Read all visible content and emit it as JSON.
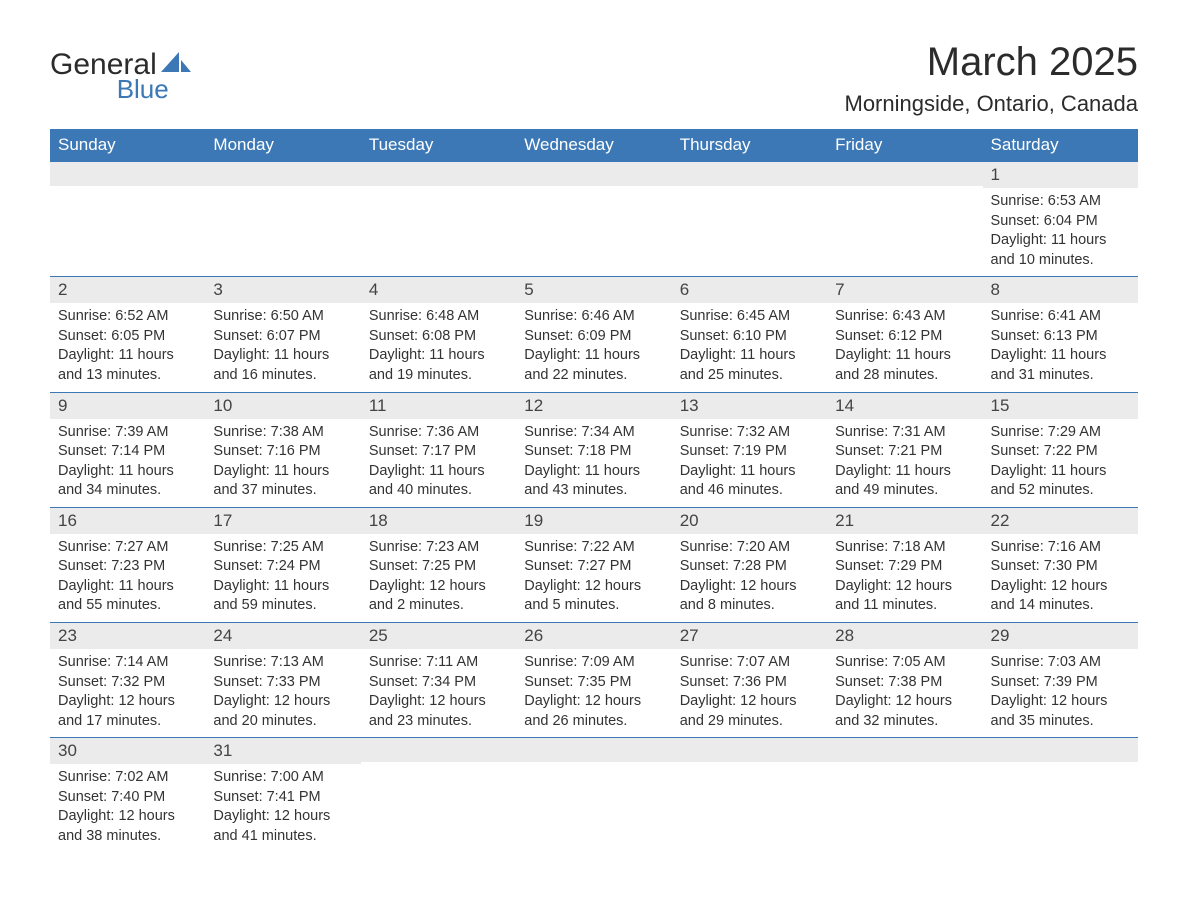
{
  "colors": {
    "header_bg": "#3b78b5",
    "header_text": "#ffffff",
    "daynum_bg": "#ebebeb",
    "row_border": "#3b78b5",
    "text": "#333333",
    "logo_blue": "#3b78b5",
    "logo_dark": "#2b2b2b",
    "page_bg": "#ffffff"
  },
  "typography": {
    "title_fontsize_pt": 30,
    "location_fontsize_pt": 16,
    "weekday_fontsize_pt": 13,
    "daynum_fontsize_pt": 13,
    "body_fontsize_pt": 11,
    "font_family": "Arial"
  },
  "logo": {
    "top_text": "General",
    "bottom_text": "Blue"
  },
  "title": {
    "month": "March 2025",
    "location": "Morningside, Ontario, Canada"
  },
  "weekdays": [
    "Sunday",
    "Monday",
    "Tuesday",
    "Wednesday",
    "Thursday",
    "Friday",
    "Saturday"
  ],
  "layout": {
    "columns": 7,
    "rows": 6,
    "first_day_weekday_index": 6
  },
  "weeks": [
    [
      null,
      null,
      null,
      null,
      null,
      null,
      {
        "n": "1",
        "sunrise": "Sunrise: 6:53 AM",
        "sunset": "Sunset: 6:04 PM",
        "daylight1": "Daylight: 11 hours",
        "daylight2": "and 10 minutes."
      }
    ],
    [
      {
        "n": "2",
        "sunrise": "Sunrise: 6:52 AM",
        "sunset": "Sunset: 6:05 PM",
        "daylight1": "Daylight: 11 hours",
        "daylight2": "and 13 minutes."
      },
      {
        "n": "3",
        "sunrise": "Sunrise: 6:50 AM",
        "sunset": "Sunset: 6:07 PM",
        "daylight1": "Daylight: 11 hours",
        "daylight2": "and 16 minutes."
      },
      {
        "n": "4",
        "sunrise": "Sunrise: 6:48 AM",
        "sunset": "Sunset: 6:08 PM",
        "daylight1": "Daylight: 11 hours",
        "daylight2": "and 19 minutes."
      },
      {
        "n": "5",
        "sunrise": "Sunrise: 6:46 AM",
        "sunset": "Sunset: 6:09 PM",
        "daylight1": "Daylight: 11 hours",
        "daylight2": "and 22 minutes."
      },
      {
        "n": "6",
        "sunrise": "Sunrise: 6:45 AM",
        "sunset": "Sunset: 6:10 PM",
        "daylight1": "Daylight: 11 hours",
        "daylight2": "and 25 minutes."
      },
      {
        "n": "7",
        "sunrise": "Sunrise: 6:43 AM",
        "sunset": "Sunset: 6:12 PM",
        "daylight1": "Daylight: 11 hours",
        "daylight2": "and 28 minutes."
      },
      {
        "n": "8",
        "sunrise": "Sunrise: 6:41 AM",
        "sunset": "Sunset: 6:13 PM",
        "daylight1": "Daylight: 11 hours",
        "daylight2": "and 31 minutes."
      }
    ],
    [
      {
        "n": "9",
        "sunrise": "Sunrise: 7:39 AM",
        "sunset": "Sunset: 7:14 PM",
        "daylight1": "Daylight: 11 hours",
        "daylight2": "and 34 minutes."
      },
      {
        "n": "10",
        "sunrise": "Sunrise: 7:38 AM",
        "sunset": "Sunset: 7:16 PM",
        "daylight1": "Daylight: 11 hours",
        "daylight2": "and 37 minutes."
      },
      {
        "n": "11",
        "sunrise": "Sunrise: 7:36 AM",
        "sunset": "Sunset: 7:17 PM",
        "daylight1": "Daylight: 11 hours",
        "daylight2": "and 40 minutes."
      },
      {
        "n": "12",
        "sunrise": "Sunrise: 7:34 AM",
        "sunset": "Sunset: 7:18 PM",
        "daylight1": "Daylight: 11 hours",
        "daylight2": "and 43 minutes."
      },
      {
        "n": "13",
        "sunrise": "Sunrise: 7:32 AM",
        "sunset": "Sunset: 7:19 PM",
        "daylight1": "Daylight: 11 hours",
        "daylight2": "and 46 minutes."
      },
      {
        "n": "14",
        "sunrise": "Sunrise: 7:31 AM",
        "sunset": "Sunset: 7:21 PM",
        "daylight1": "Daylight: 11 hours",
        "daylight2": "and 49 minutes."
      },
      {
        "n": "15",
        "sunrise": "Sunrise: 7:29 AM",
        "sunset": "Sunset: 7:22 PM",
        "daylight1": "Daylight: 11 hours",
        "daylight2": "and 52 minutes."
      }
    ],
    [
      {
        "n": "16",
        "sunrise": "Sunrise: 7:27 AM",
        "sunset": "Sunset: 7:23 PM",
        "daylight1": "Daylight: 11 hours",
        "daylight2": "and 55 minutes."
      },
      {
        "n": "17",
        "sunrise": "Sunrise: 7:25 AM",
        "sunset": "Sunset: 7:24 PM",
        "daylight1": "Daylight: 11 hours",
        "daylight2": "and 59 minutes."
      },
      {
        "n": "18",
        "sunrise": "Sunrise: 7:23 AM",
        "sunset": "Sunset: 7:25 PM",
        "daylight1": "Daylight: 12 hours",
        "daylight2": "and 2 minutes."
      },
      {
        "n": "19",
        "sunrise": "Sunrise: 7:22 AM",
        "sunset": "Sunset: 7:27 PM",
        "daylight1": "Daylight: 12 hours",
        "daylight2": "and 5 minutes."
      },
      {
        "n": "20",
        "sunrise": "Sunrise: 7:20 AM",
        "sunset": "Sunset: 7:28 PM",
        "daylight1": "Daylight: 12 hours",
        "daylight2": "and 8 minutes."
      },
      {
        "n": "21",
        "sunrise": "Sunrise: 7:18 AM",
        "sunset": "Sunset: 7:29 PM",
        "daylight1": "Daylight: 12 hours",
        "daylight2": "and 11 minutes."
      },
      {
        "n": "22",
        "sunrise": "Sunrise: 7:16 AM",
        "sunset": "Sunset: 7:30 PM",
        "daylight1": "Daylight: 12 hours",
        "daylight2": "and 14 minutes."
      }
    ],
    [
      {
        "n": "23",
        "sunrise": "Sunrise: 7:14 AM",
        "sunset": "Sunset: 7:32 PM",
        "daylight1": "Daylight: 12 hours",
        "daylight2": "and 17 minutes."
      },
      {
        "n": "24",
        "sunrise": "Sunrise: 7:13 AM",
        "sunset": "Sunset: 7:33 PM",
        "daylight1": "Daylight: 12 hours",
        "daylight2": "and 20 minutes."
      },
      {
        "n": "25",
        "sunrise": "Sunrise: 7:11 AM",
        "sunset": "Sunset: 7:34 PM",
        "daylight1": "Daylight: 12 hours",
        "daylight2": "and 23 minutes."
      },
      {
        "n": "26",
        "sunrise": "Sunrise: 7:09 AM",
        "sunset": "Sunset: 7:35 PM",
        "daylight1": "Daylight: 12 hours",
        "daylight2": "and 26 minutes."
      },
      {
        "n": "27",
        "sunrise": "Sunrise: 7:07 AM",
        "sunset": "Sunset: 7:36 PM",
        "daylight1": "Daylight: 12 hours",
        "daylight2": "and 29 minutes."
      },
      {
        "n": "28",
        "sunrise": "Sunrise: 7:05 AM",
        "sunset": "Sunset: 7:38 PM",
        "daylight1": "Daylight: 12 hours",
        "daylight2": "and 32 minutes."
      },
      {
        "n": "29",
        "sunrise": "Sunrise: 7:03 AM",
        "sunset": "Sunset: 7:39 PM",
        "daylight1": "Daylight: 12 hours",
        "daylight2": "and 35 minutes."
      }
    ],
    [
      {
        "n": "30",
        "sunrise": "Sunrise: 7:02 AM",
        "sunset": "Sunset: 7:40 PM",
        "daylight1": "Daylight: 12 hours",
        "daylight2": "and 38 minutes."
      },
      {
        "n": "31",
        "sunrise": "Sunrise: 7:00 AM",
        "sunset": "Sunset: 7:41 PM",
        "daylight1": "Daylight: 12 hours",
        "daylight2": "and 41 minutes."
      },
      null,
      null,
      null,
      null,
      null
    ]
  ]
}
